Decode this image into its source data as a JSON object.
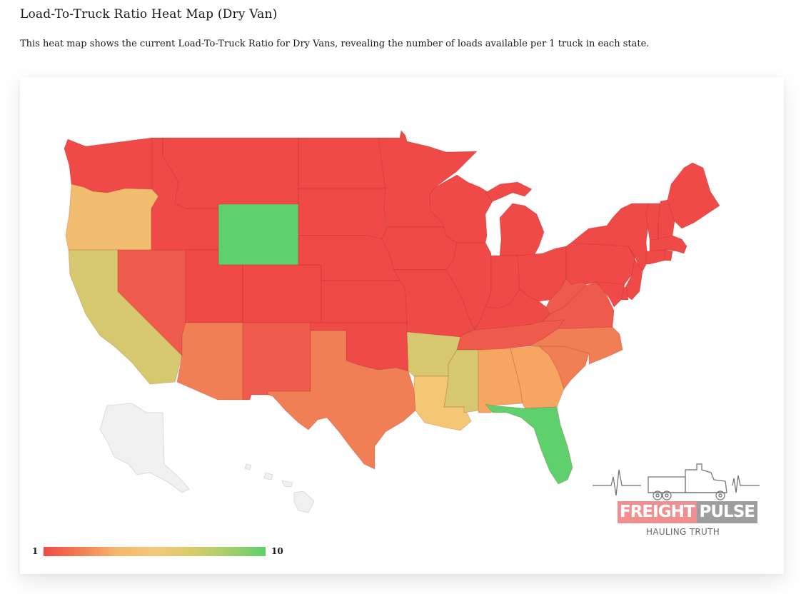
{
  "page": {
    "title": "Load-To-Truck Ratio Heat Map (Dry Van)",
    "description": "This heat map shows the current Load-To-Truck Ratio for Dry Vans, revealing the number of loads available per 1 truck in each state."
  },
  "legend": {
    "min_label": "1",
    "max_label": "10",
    "min": 1,
    "max": 10,
    "colors": [
      "#ef4a47",
      "#f07f55",
      "#f6b86c",
      "#f2c97a",
      "#d8cc6c",
      "#a6cd6c",
      "#5ed06e"
    ]
  },
  "map": {
    "scale_colors": {
      "red": "#ef4a47",
      "red_orange": "#ee5a4b",
      "orange": "#f07f55",
      "light_orange": "#f6a660",
      "peach": "#f2bd6e",
      "gold": "#f3c774",
      "olive": "#d6c86e",
      "green": "#5ed06e"
    },
    "inactive_color": "#f1f1f1",
    "states": [
      {
        "code": "WA",
        "color": "red"
      },
      {
        "code": "OR",
        "color": "peach"
      },
      {
        "code": "CA",
        "color": "olive"
      },
      {
        "code": "NV",
        "color": "red_orange"
      },
      {
        "code": "ID",
        "color": "red"
      },
      {
        "code": "MT",
        "color": "red"
      },
      {
        "code": "WY",
        "color": "green"
      },
      {
        "code": "UT",
        "color": "red"
      },
      {
        "code": "AZ",
        "color": "orange"
      },
      {
        "code": "CO",
        "color": "red"
      },
      {
        "code": "NM",
        "color": "red_orange"
      },
      {
        "code": "ND",
        "color": "red"
      },
      {
        "code": "SD",
        "color": "red"
      },
      {
        "code": "NE",
        "color": "red"
      },
      {
        "code": "KS",
        "color": "red"
      },
      {
        "code": "OK",
        "color": "red"
      },
      {
        "code": "TX",
        "color": "orange"
      },
      {
        "code": "MN",
        "color": "red"
      },
      {
        "code": "IA",
        "color": "red"
      },
      {
        "code": "MO",
        "color": "red"
      },
      {
        "code": "AR",
        "color": "olive"
      },
      {
        "code": "LA",
        "color": "gold"
      },
      {
        "code": "WI",
        "color": "red"
      },
      {
        "code": "IL",
        "color": "red"
      },
      {
        "code": "MI",
        "color": "red"
      },
      {
        "code": "IN",
        "color": "red"
      },
      {
        "code": "OH",
        "color": "red"
      },
      {
        "code": "KY",
        "color": "red"
      },
      {
        "code": "TN",
        "color": "red_orange"
      },
      {
        "code": "MS",
        "color": "olive"
      },
      {
        "code": "AL",
        "color": "light_orange"
      },
      {
        "code": "GA",
        "color": "light_orange"
      },
      {
        "code": "FL",
        "color": "green"
      },
      {
        "code": "SC",
        "color": "orange"
      },
      {
        "code": "NC",
        "color": "orange"
      },
      {
        "code": "VA",
        "color": "red_orange"
      },
      {
        "code": "WV",
        "color": "red_orange"
      },
      {
        "code": "PA",
        "color": "red"
      },
      {
        "code": "NY",
        "color": "red"
      },
      {
        "code": "VT",
        "color": "red"
      },
      {
        "code": "NH",
        "color": "red"
      },
      {
        "code": "ME",
        "color": "red"
      },
      {
        "code": "MA",
        "color": "red"
      },
      {
        "code": "CT",
        "color": "red"
      },
      {
        "code": "RI",
        "color": "red"
      },
      {
        "code": "NJ",
        "color": "red"
      },
      {
        "code": "DE",
        "color": "red"
      },
      {
        "code": "MD",
        "color": "red"
      },
      {
        "code": "AK",
        "color": "inactive"
      },
      {
        "code": "HI",
        "color": "inactive"
      }
    ]
  },
  "logo": {
    "word1": "FREIGHT",
    "word2": "PULSE",
    "tagline": "HAULING TRUTH"
  }
}
